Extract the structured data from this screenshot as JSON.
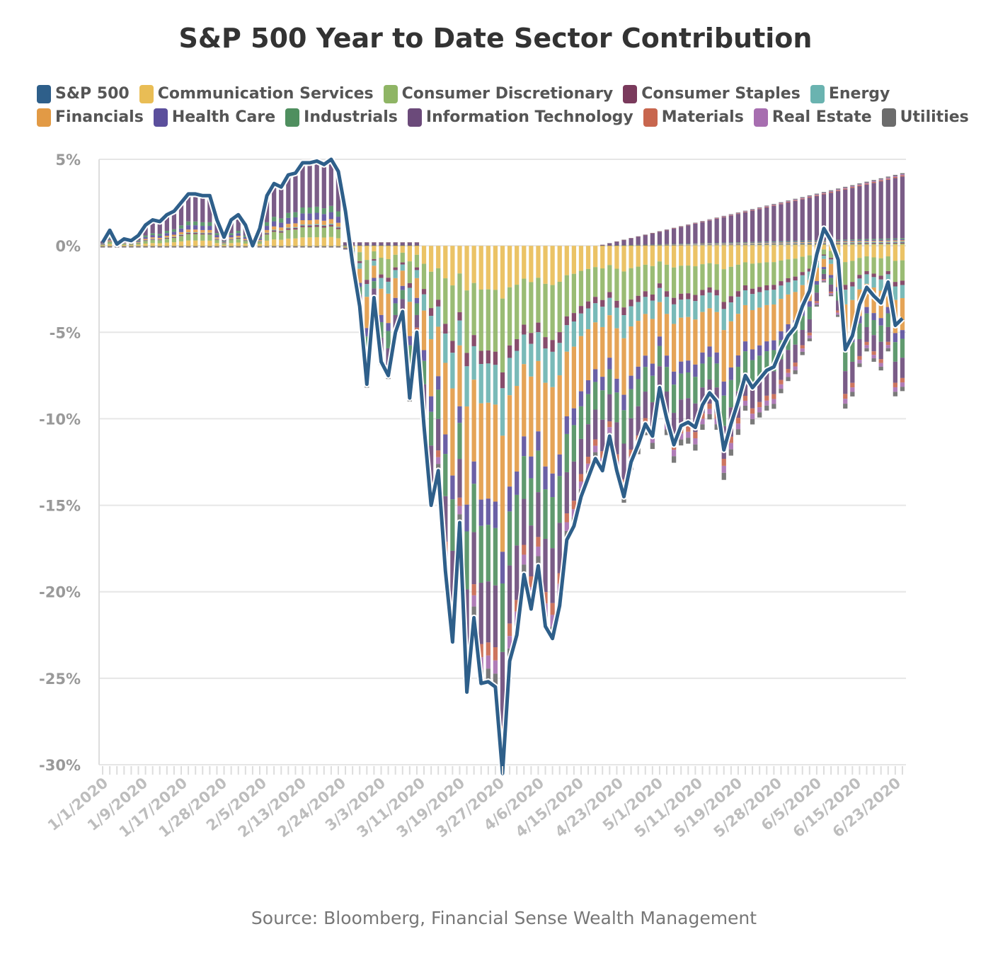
{
  "title": "S&P 500 Year to Date Sector Contribution",
  "source": "Source: Bloomberg, Financial Sense Wealth Management",
  "legend": {
    "row1": [
      {
        "label": "S&P 500",
        "color": "#2e5f8a"
      },
      {
        "label": "Communication Services",
        "color": "#e9bd55"
      },
      {
        "label": "Consumer Discretionary",
        "color": "#8fb565"
      },
      {
        "label": "Consumer Staples",
        "color": "#7a3a5c"
      },
      {
        "label": "Energy",
        "color": "#6ab3b0"
      }
    ],
    "row2": [
      {
        "label": "Financials",
        "color": "#e29a45"
      },
      {
        "label": "Health Care",
        "color": "#5b4f9c"
      },
      {
        "label": "Industrials",
        "color": "#4f8f5f"
      },
      {
        "label": "Information Technology",
        "color": "#6b4a7a"
      },
      {
        "label": "Materials",
        "color": "#c8664e"
      },
      {
        "label": "Real Estate",
        "color": "#a76eb0"
      },
      {
        "label": "Utilities",
        "color": "#6c6c6c"
      }
    ]
  },
  "chart_data": {
    "type": "bar",
    "stacked": true,
    "ylim": [
      -30,
      5
    ],
    "yticks": [
      "5%",
      "0%",
      "-5%",
      "-10%",
      "-15%",
      "-20%",
      "-25%",
      "-30%"
    ],
    "ytick_values": [
      5,
      0,
      -5,
      -10,
      -15,
      -20,
      -25,
      -30
    ],
    "xticks": [
      "1/1/2020",
      "1/9/2020",
      "1/17/2020",
      "1/28/2020",
      "2/5/2020",
      "2/13/2020",
      "2/24/2020",
      "3/3/2020",
      "3/11/2020",
      "3/19/2020",
      "3/27/2020",
      "4/6/2020",
      "4/15/2020",
      "4/23/2020",
      "5/1/2020",
      "5/11/2020",
      "5/19/2020",
      "5/28/2020",
      "6/5/2020",
      "6/15/2020",
      "6/23/2020"
    ],
    "grid": true,
    "legend_position": "top",
    "sectors": [
      {
        "name": "Communication Services",
        "color": "#e9bd55"
      },
      {
        "name": "Consumer Discretionary",
        "color": "#8fb565"
      },
      {
        "name": "Consumer Staples",
        "color": "#7a3a5c"
      },
      {
        "name": "Energy",
        "color": "#6ab3b0"
      },
      {
        "name": "Financials",
        "color": "#e29a45"
      },
      {
        "name": "Health Care",
        "color": "#5b4f9c"
      },
      {
        "name": "Industrials",
        "color": "#4f8f5f"
      },
      {
        "name": "Information Technology",
        "color": "#6b4a7a"
      },
      {
        "name": "Materials",
        "color": "#c8664e"
      },
      {
        "name": "Real Estate",
        "color": "#a76eb0"
      },
      {
        "name": "Utilities",
        "color": "#6c6c6c"
      }
    ],
    "sp500_series": {
      "name": "S&P 500",
      "color": "#2e5f8a",
      "values": [
        0.2,
        0.9,
        0.1,
        0.4,
        0.3,
        0.6,
        1.2,
        1.5,
        1.4,
        1.8,
        2.0,
        2.5,
        3.0,
        3.0,
        2.9,
        2.9,
        1.5,
        0.5,
        1.5,
        1.8,
        1.2,
        0.0,
        1.0,
        2.9,
        3.6,
        3.4,
        4.1,
        4.2,
        4.8,
        4.8,
        4.9,
        4.7,
        5.0,
        4.3,
        2.0,
        -1.0,
        -3.5,
        -8.0,
        -3.0,
        -6.7,
        -7.5,
        -5.0,
        -3.8,
        -8.8,
        -5.0,
        -10.4,
        -15.0,
        -13.0,
        -18.8,
        -22.9,
        -16.0,
        -25.8,
        -21.5,
        -25.3,
        -25.2,
        -25.5,
        -30.5,
        -24.0,
        -22.5,
        -19.0,
        -21.0,
        -18.5,
        -22.0,
        -22.7,
        -20.8,
        -17.0,
        -16.2,
        -14.5,
        -13.4,
        -12.3,
        -13.0,
        -11.0,
        -13.0,
        -14.5,
        -12.5,
        -11.5,
        -10.3,
        -11.0,
        -8.2,
        -10.0,
        -11.5,
        -10.4,
        -10.2,
        -10.5,
        -9.2,
        -8.5,
        -9.0,
        -11.8,
        -10.3,
        -9.0,
        -7.5,
        -8.2,
        -7.7,
        -7.2,
        -7.0,
        -6.0,
        -5.2,
        -4.7,
        -3.5,
        -2.6,
        -0.5,
        1.0,
        0.3,
        -0.8,
        -6.0,
        -5.2,
        -3.4,
        -2.4,
        -2.9,
        -3.3,
        -2.1,
        -4.6,
        -4.2
      ]
    }
  }
}
